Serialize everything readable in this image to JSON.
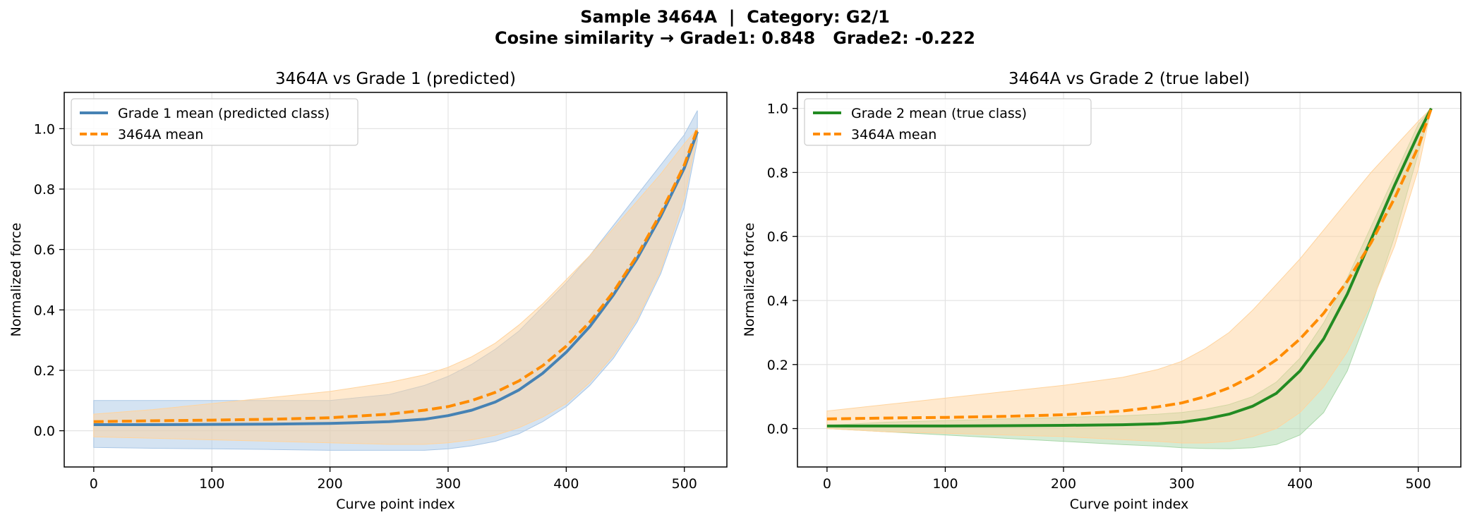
{
  "figure": {
    "suptitle_line1": "Sample 3464A  |  Category: G2/1",
    "suptitle_line2": "Cosine similarity → Grade1: 0.848   Grade2: -0.222"
  },
  "chart_data": [
    {
      "type": "line",
      "title": "3464A vs Grade 1 (predicted)",
      "xlabel": "Curve point index",
      "ylabel": "Normalized force",
      "xlim": [
        -25,
        536
      ],
      "ylim": [
        -0.12,
        1.12
      ],
      "xticks": [
        0,
        100,
        200,
        300,
        400,
        500
      ],
      "yticks": [
        0.0,
        0.2,
        0.4,
        0.6,
        0.8,
        1.0
      ],
      "grid": true,
      "legend_position": "top-left",
      "series": [
        {
          "name": "Grade 1 mean (predicted class)",
          "style": "solid",
          "color": "#4682b4",
          "band_color": "#aac7e6",
          "x": [
            0,
            50,
            100,
            150,
            200,
            250,
            280,
            300,
            320,
            340,
            360,
            380,
            400,
            420,
            440,
            460,
            480,
            500,
            511
          ],
          "mean": [
            0.02,
            0.02,
            0.021,
            0.022,
            0.024,
            0.03,
            0.038,
            0.05,
            0.068,
            0.095,
            0.135,
            0.19,
            0.26,
            0.345,
            0.45,
            0.57,
            0.71,
            0.87,
            0.99
          ],
          "lower": [
            -0.055,
            -0.058,
            -0.06,
            -0.062,
            -0.065,
            -0.065,
            -0.065,
            -0.06,
            -0.05,
            -0.035,
            -0.01,
            0.03,
            0.08,
            0.15,
            0.24,
            0.36,
            0.52,
            0.74,
            0.96
          ],
          "upper": [
            0.1,
            0.1,
            0.1,
            0.1,
            0.1,
            0.12,
            0.15,
            0.18,
            0.22,
            0.27,
            0.33,
            0.41,
            0.49,
            0.58,
            0.68,
            0.78,
            0.88,
            0.98,
            1.06
          ]
        },
        {
          "name": "3464A mean",
          "style": "dashed",
          "color": "#ff8c00",
          "band_color": "#ffd49e",
          "x": [
            0,
            50,
            100,
            150,
            200,
            250,
            280,
            300,
            320,
            340,
            360,
            380,
            400,
            420,
            440,
            460,
            480,
            500,
            511
          ],
          "mean": [
            0.03,
            0.033,
            0.035,
            0.038,
            0.043,
            0.055,
            0.068,
            0.08,
            0.1,
            0.127,
            0.165,
            0.215,
            0.28,
            0.36,
            0.46,
            0.58,
            0.72,
            0.88,
            1.0
          ],
          "lower": [
            -0.02,
            -0.025,
            -0.03,
            -0.035,
            -0.04,
            -0.045,
            -0.045,
            -0.04,
            -0.03,
            -0.015,
            0.01,
            0.045,
            0.09,
            0.16,
            0.25,
            0.37,
            0.53,
            0.77,
            0.98
          ],
          "upper": [
            0.055,
            0.07,
            0.09,
            0.11,
            0.13,
            0.16,
            0.185,
            0.21,
            0.245,
            0.29,
            0.35,
            0.42,
            0.5,
            0.58,
            0.67,
            0.76,
            0.85,
            0.95,
            1.0
          ]
        }
      ]
    },
    {
      "type": "line",
      "title": "3464A vs Grade 2 (true label)",
      "xlabel": "Curve point index",
      "ylabel": "Normalized force",
      "xlim": [
        -25,
        536
      ],
      "ylim": [
        -0.12,
        1.05
      ],
      "xticks": [
        0,
        100,
        200,
        300,
        400,
        500
      ],
      "yticks": [
        0.0,
        0.2,
        0.4,
        0.6,
        0.8,
        1.0
      ],
      "grid": true,
      "legend_position": "top-left",
      "series": [
        {
          "name": "Grade 2 mean (true class)",
          "style": "solid",
          "color": "#228b22",
          "band_color": "#aad8aa",
          "x": [
            0,
            50,
            100,
            150,
            200,
            250,
            280,
            300,
            320,
            340,
            360,
            380,
            400,
            420,
            440,
            460,
            480,
            500,
            511
          ],
          "mean": [
            0.008,
            0.008,
            0.008,
            0.009,
            0.01,
            0.012,
            0.015,
            0.02,
            0.03,
            0.045,
            0.07,
            0.11,
            0.18,
            0.28,
            0.42,
            0.59,
            0.76,
            0.92,
            1.0
          ],
          "lower": [
            0.0,
            -0.01,
            -0.02,
            -0.03,
            -0.04,
            -0.05,
            -0.055,
            -0.06,
            -0.062,
            -0.063,
            -0.06,
            -0.05,
            -0.02,
            0.05,
            0.18,
            0.38,
            0.6,
            0.86,
            1.0
          ],
          "upper": [
            0.01,
            0.02,
            0.025,
            0.03,
            0.035,
            0.04,
            0.045,
            0.05,
            0.06,
            0.075,
            0.1,
            0.145,
            0.22,
            0.33,
            0.47,
            0.63,
            0.79,
            0.95,
            1.0
          ]
        },
        {
          "name": "3464A mean",
          "style": "dashed",
          "color": "#ff8c00",
          "band_color": "#ffd49e",
          "x": [
            0,
            50,
            100,
            150,
            200,
            250,
            280,
            300,
            320,
            340,
            360,
            380,
            400,
            420,
            440,
            460,
            480,
            500,
            511
          ],
          "mean": [
            0.03,
            0.033,
            0.035,
            0.038,
            0.043,
            0.055,
            0.068,
            0.08,
            0.1,
            0.127,
            0.165,
            0.215,
            0.28,
            0.36,
            0.46,
            0.58,
            0.72,
            0.88,
            1.0
          ],
          "lower": [
            0.0,
            -0.01,
            -0.015,
            -0.02,
            -0.025,
            -0.035,
            -0.04,
            -0.045,
            -0.045,
            -0.04,
            -0.025,
            0.0,
            0.05,
            0.13,
            0.24,
            0.39,
            0.57,
            0.81,
            1.0
          ],
          "upper": [
            0.055,
            0.075,
            0.095,
            0.115,
            0.135,
            0.16,
            0.185,
            0.21,
            0.25,
            0.3,
            0.37,
            0.45,
            0.53,
            0.62,
            0.71,
            0.8,
            0.88,
            0.96,
            1.0
          ]
        }
      ]
    }
  ]
}
